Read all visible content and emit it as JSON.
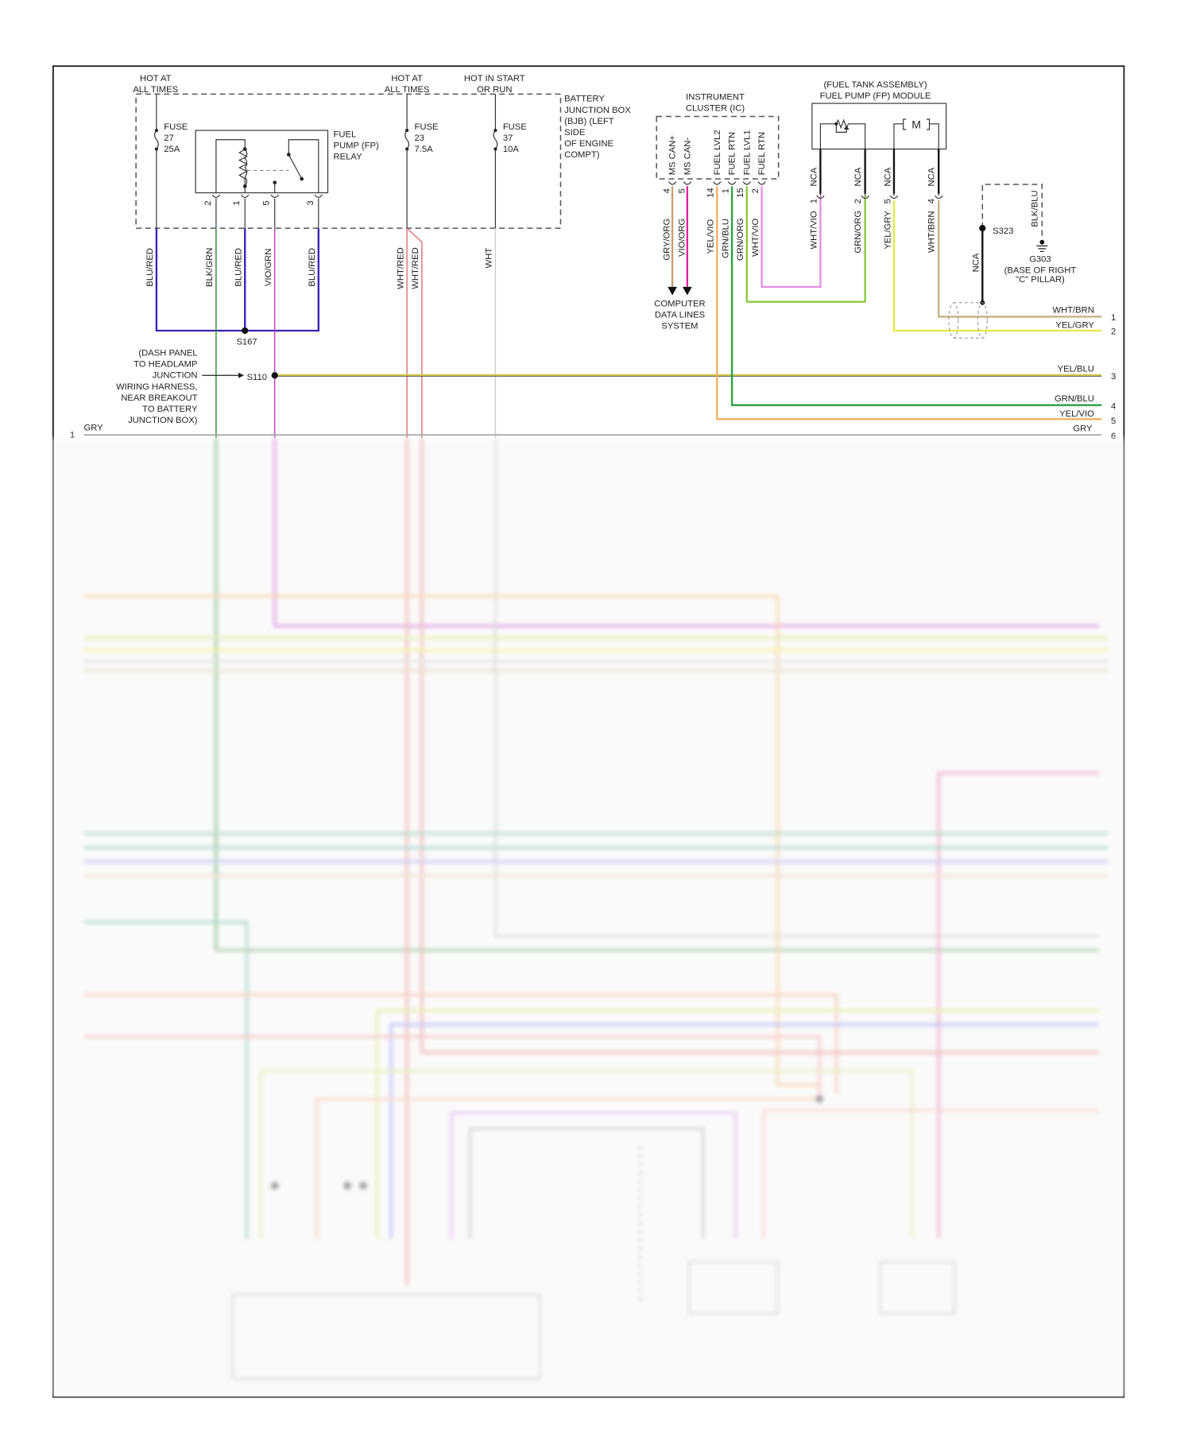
{
  "colors": {
    "blu_red": "#3a22b4",
    "blk_grn": "#2a8a2a",
    "vio_grn": "#c03cc8",
    "wht_red": "#e07070",
    "wht": "#cccccc",
    "gry": "#aaaaaa",
    "gry_org": "#c8a070",
    "vio_org": "#e020a0",
    "yel_vio": "#f0b060",
    "grn_blu": "#2aa040",
    "grn_org": "#8cc83c",
    "wht_vio": "#e090e0",
    "yel_gry": "#e8e840",
    "wht_brn": "#c8b080",
    "yel_blu": "#c8c040"
  },
  "power": {
    "hot1": [
      "HOT AT",
      "ALL TIMES"
    ],
    "hot2": [
      "HOT AT",
      "ALL TIMES"
    ],
    "hot3": [
      "HOT IN START",
      "OR RUN"
    ]
  },
  "bjb": {
    "label": [
      "BATTERY",
      "JUNCTION BOX",
      "(BJB) (LEFT",
      "SIDE",
      "OF ENGINE",
      "COMPT)"
    ],
    "fuses": [
      {
        "lines": [
          "FUSE",
          "27",
          "25A"
        ]
      },
      {
        "lines": [
          "FUSE",
          "23",
          "7.5A"
        ]
      },
      {
        "lines": [
          "FUSE",
          "37",
          "10A"
        ]
      }
    ],
    "relay": {
      "label": [
        "FUEL",
        "PUMP (FP)",
        "RELAY"
      ],
      "pins": [
        "2",
        "1",
        "5",
        "3"
      ]
    }
  },
  "wires_left": [
    "BLU/RED",
    "BLK/GRN",
    "BLU/RED",
    "VIO/GRN",
    "BLU/RED",
    "WHT/RED",
    "WHT/RED",
    "WHT"
  ],
  "splices": {
    "s167": "S167",
    "s110": "S110",
    "s323": "S323"
  },
  "s110_note": [
    "(DASH PANEL",
    "TO HEADLAMP",
    "JUNCTION",
    "WIRING HARNESS,",
    "NEAR BREAKOUT",
    "TO BATTERY",
    "JUNCTION BOX)"
  ],
  "left_connector": {
    "pin": "1",
    "wire": "GRY"
  },
  "cluster": {
    "title": [
      "INSTRUMENT",
      "CLUSTER (IC)"
    ],
    "pins": [
      {
        "name": "MS CAN+",
        "num": "4",
        "wire": "GRY/ORG"
      },
      {
        "name": "MS CAN-",
        "num": "5",
        "wire": "VIO/ORG"
      },
      {
        "name": "FUEL LVL2",
        "num": "14",
        "wire": "YEL/VIO"
      },
      {
        "name": "FUEL RTN",
        "num": "1",
        "wire": "GRN/BLU"
      },
      {
        "name": "FUEL LVL1",
        "num": "15",
        "wire": "GRN/ORG"
      },
      {
        "name": "FUEL RTN",
        "num": "2",
        "wire": "WHT/VIO"
      }
    ],
    "data_lines": [
      "COMPUTER",
      "DATA LINES",
      "SYSTEM"
    ]
  },
  "fp_module": {
    "title": [
      "(FUEL TANK ASSEMBLY)",
      "FUEL PUMP (FP) MODULE"
    ],
    "motor": "M",
    "pins": [
      {
        "nca": "NCA",
        "num": "1",
        "wire": "WHT/VIO"
      },
      {
        "nca": "NCA",
        "num": "2",
        "wire": "GRN/ORG"
      },
      {
        "nca": "NCA",
        "num": "5",
        "wire": "YEL/GRY"
      },
      {
        "nca": "NCA",
        "num": "4",
        "wire": "WHT/BRN"
      }
    ]
  },
  "ground": {
    "wire": "BLK/BLU",
    "nca": "NCA",
    "label": [
      "G303",
      "(BASE OF RIGHT",
      "\"C\" PILLAR)"
    ]
  },
  "right_connector": [
    {
      "pin": "1",
      "wire": "WHT/BRN"
    },
    {
      "pin": "2",
      "wire": "YEL/GRY"
    },
    {
      "pin": "3",
      "wire": "YEL/BLU"
    },
    {
      "pin": "4",
      "wire": "GRN/BLU"
    },
    {
      "pin": "5",
      "wire": "YEL/VIO"
    },
    {
      "pin": "6",
      "wire": "GRY"
    }
  ]
}
